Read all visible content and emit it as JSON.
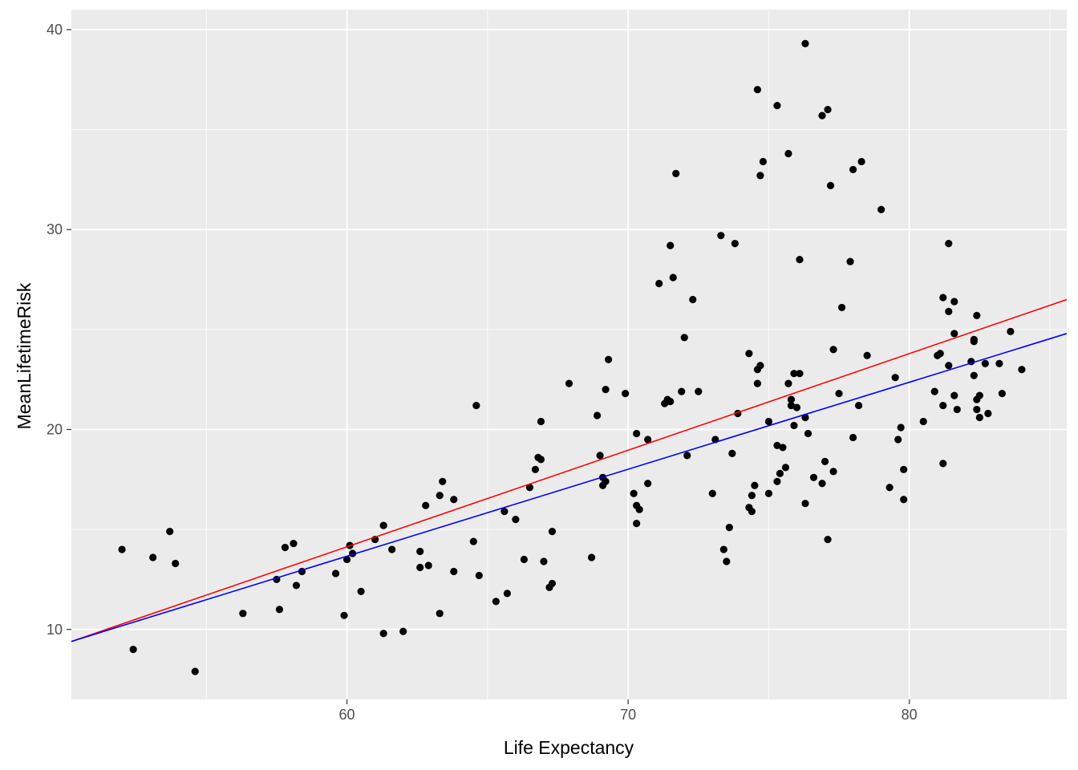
{
  "chart_data": {
    "type": "scatter",
    "title": "",
    "xlabel": "Life Expectancy",
    "ylabel": "MeanLifetimeRisk",
    "xlim": [
      50.2,
      85.6
    ],
    "ylim": [
      6.5,
      41
    ],
    "x_ticks": [
      60,
      70,
      80
    ],
    "x_minor_ticks": [
      55,
      65,
      75,
      85
    ],
    "y_ticks": [
      10,
      20,
      30,
      40
    ],
    "y_minor_ticks": [
      15,
      25,
      35
    ],
    "grid": true,
    "colors": {
      "panel": "#ebebeb",
      "grid": "#ffffff",
      "points": "#000000",
      "line_red": "#ff0000",
      "line_blue": "#0000ff"
    },
    "lines": [
      {
        "color": "red",
        "x": [
          50.2,
          85.6
        ],
        "y": [
          9.4,
          26.5
        ]
      },
      {
        "color": "blue",
        "x": [
          50.2,
          85.6
        ],
        "y": [
          9.4,
          24.8
        ]
      }
    ],
    "points": [
      [
        52.0,
        14.0
      ],
      [
        52.4,
        9.0
      ],
      [
        53.1,
        13.6
      ],
      [
        53.7,
        14.9
      ],
      [
        53.9,
        13.3
      ],
      [
        54.6,
        7.9
      ],
      [
        56.3,
        10.8
      ],
      [
        57.5,
        12.5
      ],
      [
        57.6,
        11.0
      ],
      [
        57.8,
        14.1
      ],
      [
        58.1,
        14.3
      ],
      [
        58.2,
        12.2
      ],
      [
        58.4,
        12.9
      ],
      [
        59.6,
        12.8
      ],
      [
        59.9,
        10.7
      ],
      [
        60.0,
        13.5
      ],
      [
        60.1,
        14.2
      ],
      [
        60.2,
        13.8
      ],
      [
        60.5,
        11.9
      ],
      [
        61.0,
        14.5
      ],
      [
        61.3,
        15.2
      ],
      [
        61.3,
        9.8
      ],
      [
        61.6,
        14.0
      ],
      [
        62.0,
        9.9
      ],
      [
        62.6,
        13.9
      ],
      [
        62.6,
        13.1
      ],
      [
        62.8,
        16.2
      ],
      [
        62.9,
        13.2
      ],
      [
        63.3,
        16.7
      ],
      [
        63.3,
        10.8
      ],
      [
        63.4,
        17.4
      ],
      [
        63.8,
        16.5
      ],
      [
        63.8,
        12.9
      ],
      [
        64.5,
        14.4
      ],
      [
        64.6,
        21.2
      ],
      [
        64.7,
        12.7
      ],
      [
        65.3,
        11.4
      ],
      [
        65.6,
        15.9
      ],
      [
        65.7,
        11.8
      ],
      [
        66.0,
        15.5
      ],
      [
        66.3,
        13.5
      ],
      [
        66.5,
        17.1
      ],
      [
        66.7,
        18.0
      ],
      [
        66.8,
        18.6
      ],
      [
        66.9,
        18.5
      ],
      [
        66.9,
        20.4
      ],
      [
        67.0,
        13.4
      ],
      [
        67.2,
        12.1
      ],
      [
        67.3,
        14.9
      ],
      [
        67.3,
        12.3
      ],
      [
        67.9,
        22.3
      ],
      [
        68.7,
        13.6
      ],
      [
        68.9,
        20.7
      ],
      [
        69.0,
        18.7
      ],
      [
        69.1,
        17.2
      ],
      [
        69.1,
        17.6
      ],
      [
        69.2,
        17.4
      ],
      [
        69.2,
        22.0
      ],
      [
        69.3,
        23.5
      ],
      [
        69.9,
        21.8
      ],
      [
        70.2,
        16.8
      ],
      [
        70.3,
        19.8
      ],
      [
        70.3,
        15.3
      ],
      [
        70.3,
        16.2
      ],
      [
        70.4,
        16.0
      ],
      [
        70.7,
        19.5
      ],
      [
        70.7,
        17.3
      ],
      [
        71.1,
        27.3
      ],
      [
        71.3,
        21.3
      ],
      [
        71.4,
        21.5
      ],
      [
        71.5,
        29.2
      ],
      [
        71.5,
        21.4
      ],
      [
        71.6,
        27.6
      ],
      [
        71.7,
        32.8
      ],
      [
        71.9,
        21.9
      ],
      [
        72.0,
        24.6
      ],
      [
        72.1,
        18.7
      ],
      [
        72.3,
        26.5
      ],
      [
        72.5,
        21.9
      ],
      [
        73.0,
        16.8
      ],
      [
        73.1,
        19.5
      ],
      [
        73.3,
        29.7
      ],
      [
        73.4,
        14.0
      ],
      [
        73.5,
        13.4
      ],
      [
        73.6,
        15.1
      ],
      [
        73.7,
        18.8
      ],
      [
        73.8,
        29.3
      ],
      [
        73.9,
        20.8
      ],
      [
        74.3,
        23.8
      ],
      [
        74.3,
        16.1
      ],
      [
        74.4,
        15.9
      ],
      [
        74.4,
        16.7
      ],
      [
        74.5,
        17.2
      ],
      [
        74.6,
        22.3
      ],
      [
        74.6,
        23.0
      ],
      [
        74.7,
        23.2
      ],
      [
        74.6,
        37.0
      ],
      [
        74.7,
        32.7
      ],
      [
        74.8,
        33.4
      ],
      [
        75.0,
        16.8
      ],
      [
        75.0,
        20.4
      ],
      [
        75.3,
        36.2
      ],
      [
        75.3,
        17.4
      ],
      [
        75.3,
        19.2
      ],
      [
        75.4,
        17.8
      ],
      [
        75.5,
        19.1
      ],
      [
        75.6,
        18.1
      ],
      [
        75.7,
        33.8
      ],
      [
        75.7,
        22.3
      ],
      [
        75.8,
        21.5
      ],
      [
        75.8,
        21.2
      ],
      [
        75.9,
        20.2
      ],
      [
        75.9,
        22.8
      ],
      [
        76.0,
        21.1
      ],
      [
        76.1,
        28.5
      ],
      [
        76.1,
        22.8
      ],
      [
        76.3,
        20.6
      ],
      [
        76.3,
        16.3
      ],
      [
        76.3,
        39.3
      ],
      [
        76.4,
        19.8
      ],
      [
        76.6,
        17.6
      ],
      [
        76.9,
        35.7
      ],
      [
        76.9,
        17.3
      ],
      [
        77.0,
        18.4
      ],
      [
        77.1,
        14.5
      ],
      [
        77.1,
        36.0
      ],
      [
        77.2,
        32.2
      ],
      [
        77.3,
        24.0
      ],
      [
        77.3,
        17.9
      ],
      [
        77.5,
        21.8
      ],
      [
        77.6,
        26.1
      ],
      [
        77.9,
        28.4
      ],
      [
        78.0,
        33.0
      ],
      [
        78.0,
        19.6
      ],
      [
        78.2,
        21.2
      ],
      [
        78.3,
        33.4
      ],
      [
        78.5,
        23.7
      ],
      [
        79.0,
        31.0
      ],
      [
        79.3,
        17.1
      ],
      [
        79.5,
        22.6
      ],
      [
        79.6,
        19.5
      ],
      [
        79.7,
        20.1
      ],
      [
        79.8,
        16.5
      ],
      [
        79.8,
        18.0
      ],
      [
        80.5,
        20.4
      ],
      [
        80.9,
        21.9
      ],
      [
        81.0,
        23.7
      ],
      [
        81.1,
        23.8
      ],
      [
        81.2,
        26.6
      ],
      [
        81.2,
        18.3
      ],
      [
        81.2,
        21.2
      ],
      [
        81.4,
        23.2
      ],
      [
        81.4,
        25.9
      ],
      [
        81.4,
        29.3
      ],
      [
        81.6,
        26.4
      ],
      [
        81.6,
        24.8
      ],
      [
        81.6,
        21.7
      ],
      [
        81.7,
        21.0
      ],
      [
        82.2,
        23.4
      ],
      [
        82.3,
        22.7
      ],
      [
        82.3,
        24.4
      ],
      [
        82.3,
        24.5
      ],
      [
        82.4,
        25.7
      ],
      [
        82.4,
        21.0
      ],
      [
        82.4,
        21.5
      ],
      [
        82.5,
        21.7
      ],
      [
        82.5,
        20.6
      ],
      [
        82.7,
        23.3
      ],
      [
        82.8,
        20.8
      ],
      [
        83.2,
        23.3
      ],
      [
        83.3,
        21.8
      ],
      [
        83.6,
        24.9
      ],
      [
        84.0,
        23.0
      ]
    ]
  }
}
